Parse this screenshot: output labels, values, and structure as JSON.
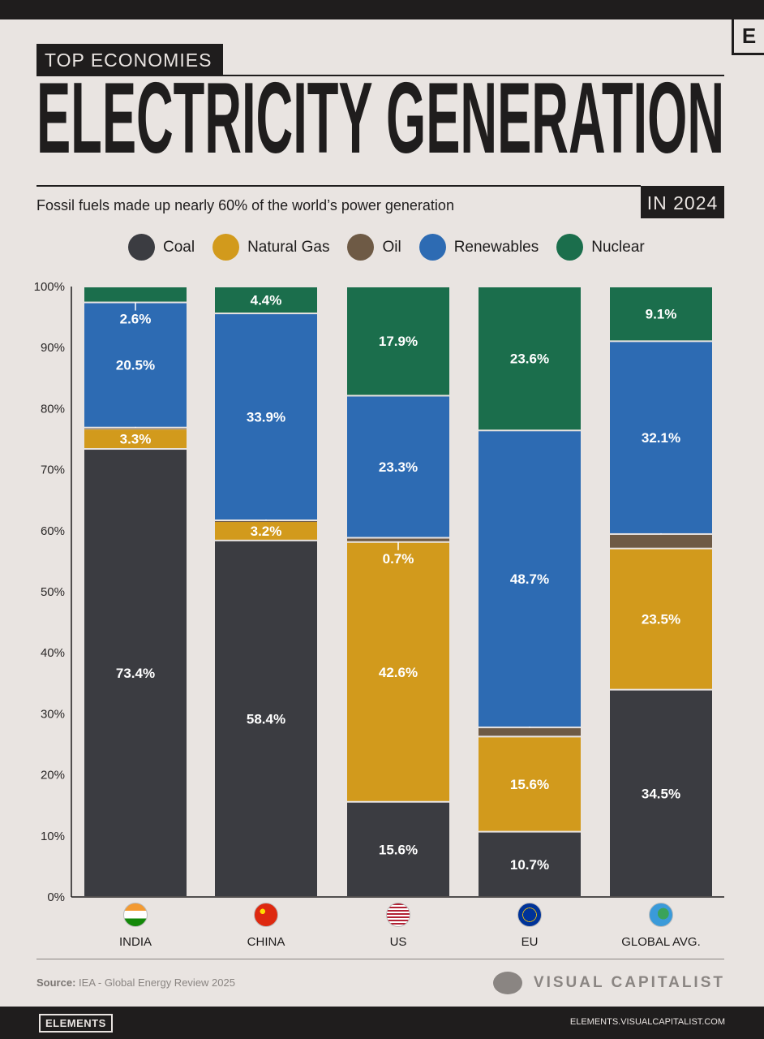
{
  "header": {
    "badge": "E",
    "kicker": "TOP ECONOMIES",
    "title": "ELECTRICITY GENERATION",
    "year": "IN 2024",
    "subtitle": "Fossil fuels made up nearly 60% of the world’s power generation"
  },
  "colors": {
    "Coal": "#3b3c41",
    "Natural Gas": "#d29a1c",
    "Oil": "#6e5a45",
    "Renewables": "#2d6bb3",
    "Nuclear": "#1b6e4c"
  },
  "chart_data": {
    "type": "bar",
    "stacked": true,
    "title": "Electricity Generation in 2024",
    "ylim": [
      0,
      100
    ],
    "yticks": [
      "0%",
      "10%",
      "20%",
      "30%",
      "40%",
      "50%",
      "60%",
      "70%",
      "80%",
      "90%",
      "100%"
    ],
    "legend": [
      "Coal",
      "Natural Gas",
      "Oil",
      "Renewables",
      "Nuclear"
    ],
    "legend_position": "top",
    "categories": [
      "INDIA",
      "CHINA",
      "US",
      "EU",
      "GLOBAL AVG."
    ],
    "series": [
      {
        "name": "Coal",
        "values": [
          73.4,
          58.4,
          15.6,
          10.7,
          34.5
        ]
      },
      {
        "name": "Natural Gas",
        "values": [
          3.3,
          3.2,
          42.6,
          15.6,
          23.5
        ]
      },
      {
        "name": "Oil",
        "values": [
          0.2,
          0.1,
          0.7,
          1.5,
          2.4
        ]
      },
      {
        "name": "Renewables",
        "values": [
          20.5,
          33.9,
          23.3,
          48.7,
          32.1
        ]
      },
      {
        "name": "Nuclear",
        "values": [
          2.6,
          4.4,
          17.9,
          23.6,
          9.1
        ]
      }
    ]
  },
  "footer": {
    "source_label": "Source:",
    "source": "IEA - Global Energy Review 2025",
    "brand": "VISUAL CAPITALIST",
    "elements": "ELEMENTS",
    "url": "ELEMENTS.VISUALCAPITALIST.COM"
  }
}
